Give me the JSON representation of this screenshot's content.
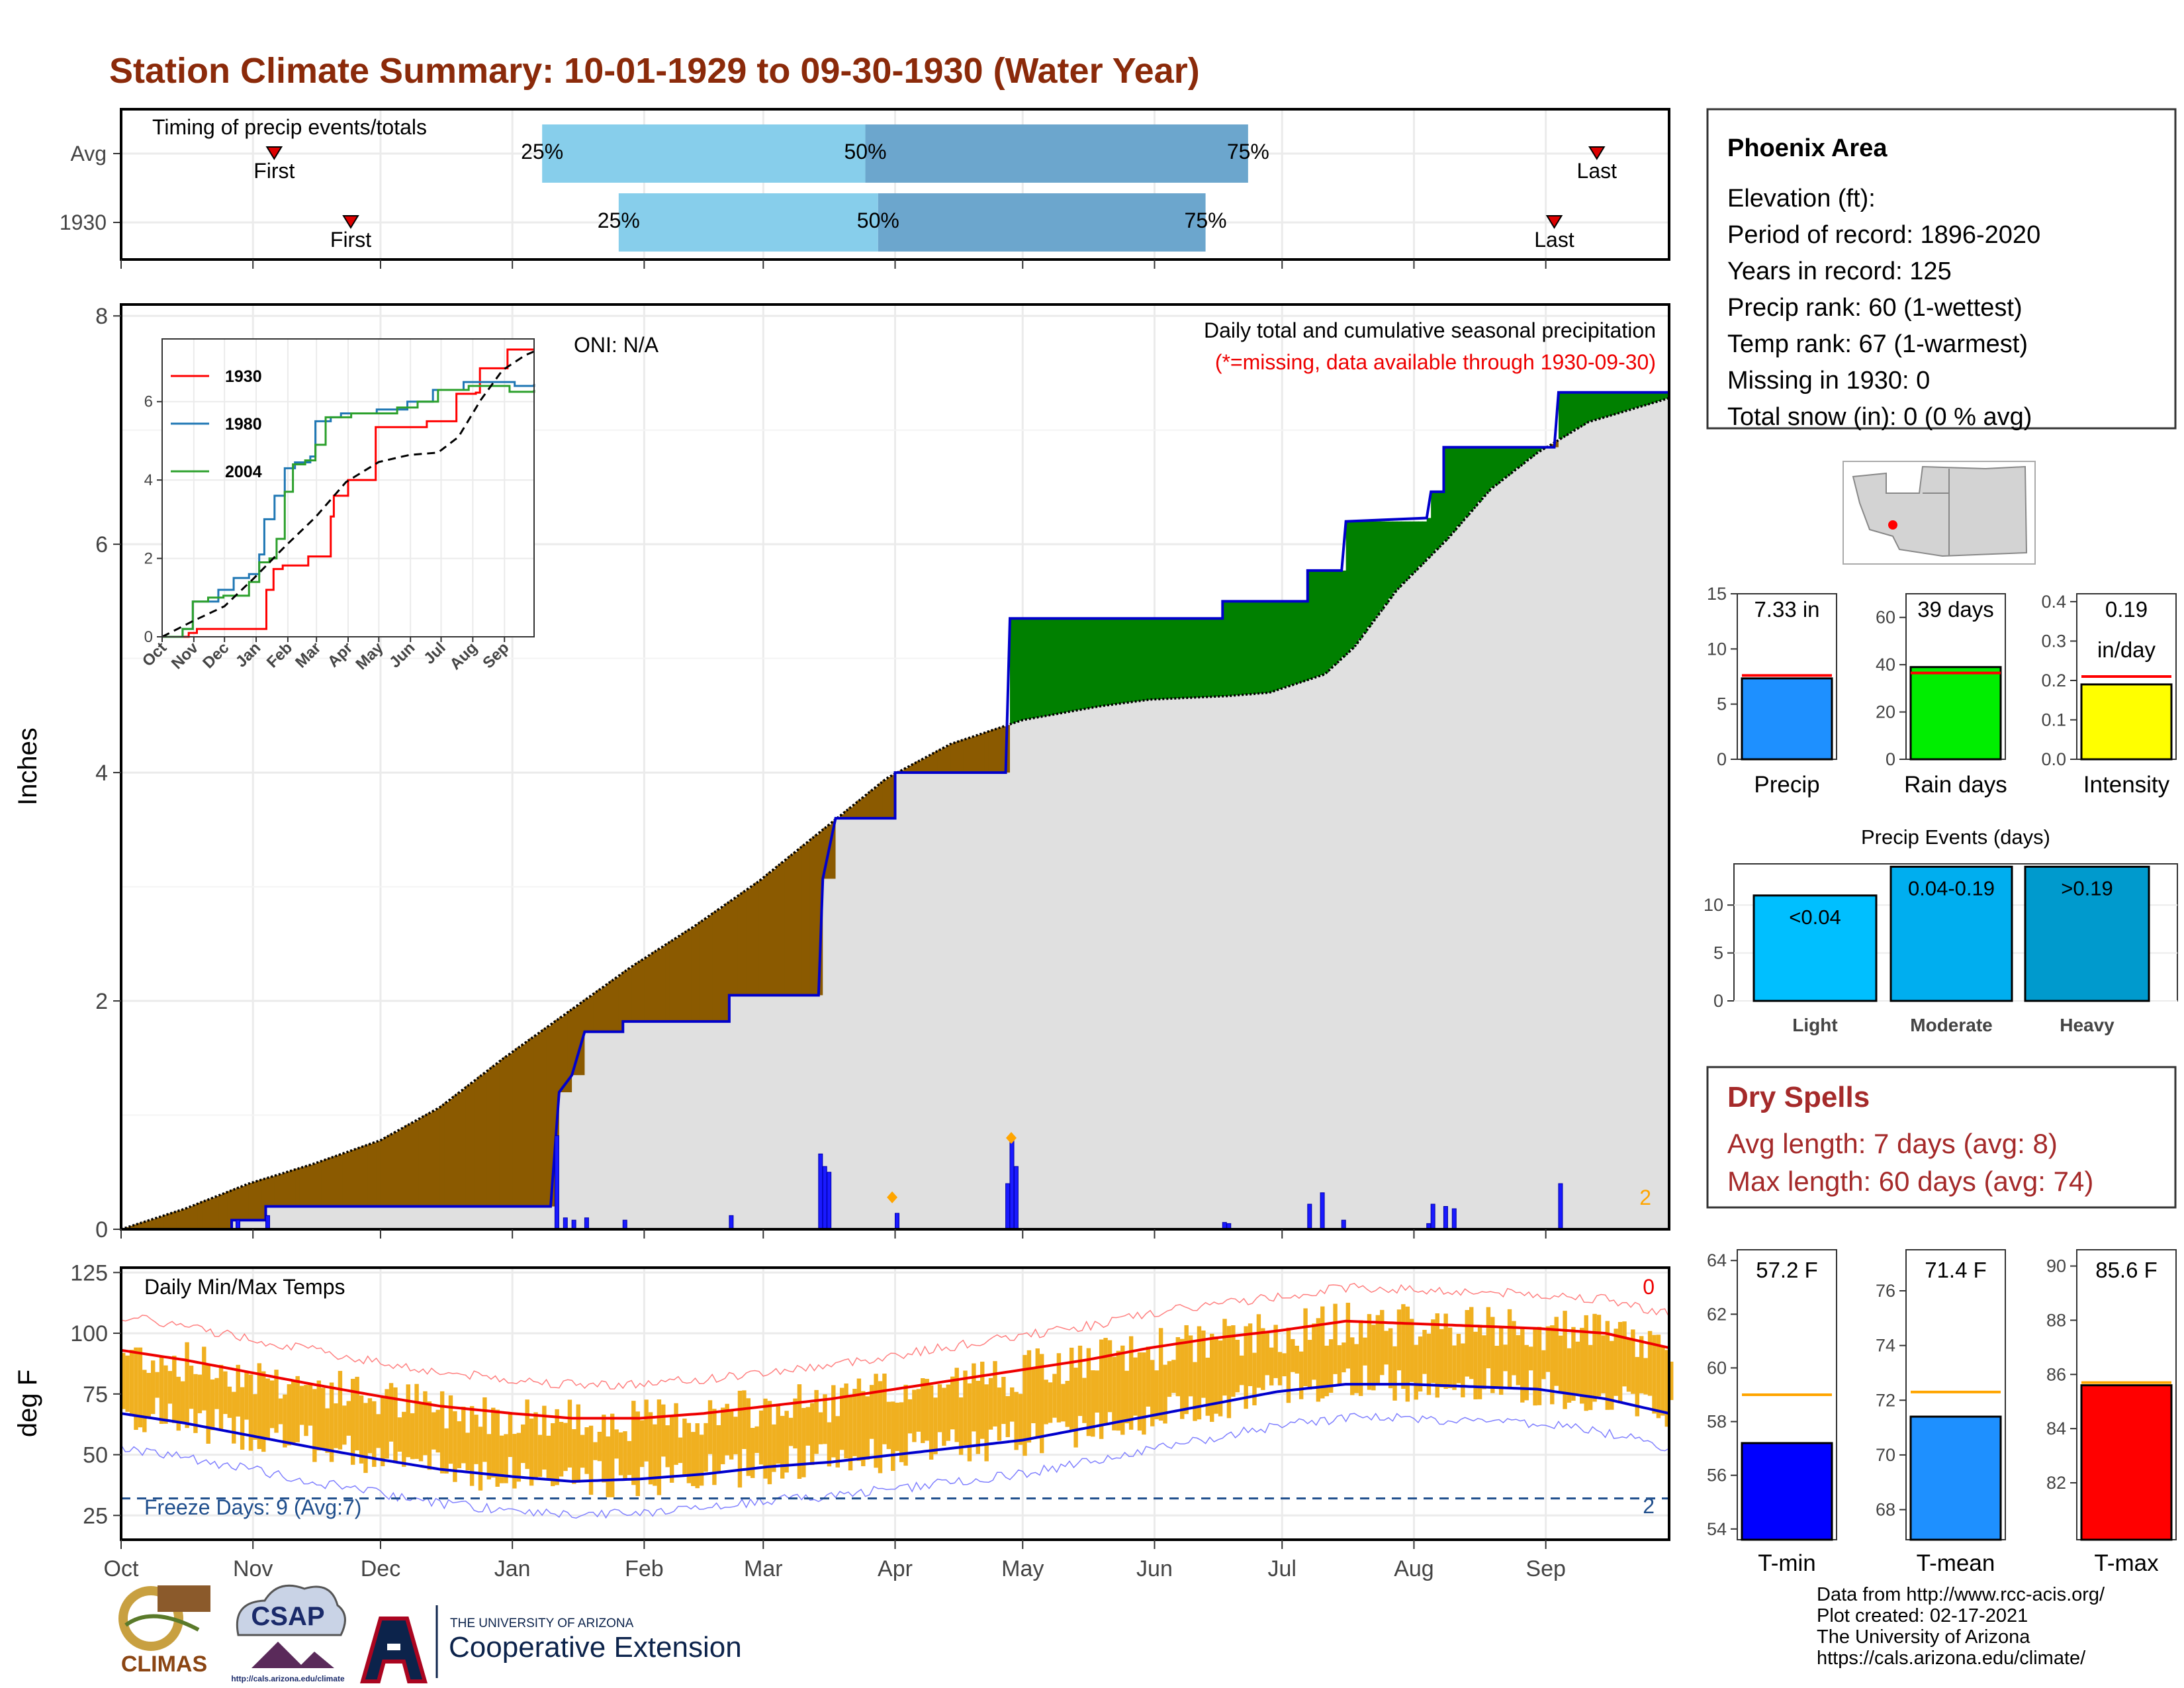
{
  "title": "Station Climate Summary: 10-01-1929 to 09-30-1930 (Water Year)",
  "colors": {
    "title": "#8b2a0a",
    "deficit": "#8B5A00",
    "surplus": "#008000",
    "cum_fill": "#E0E0E0",
    "obs_line": "#0000CC",
    "q1": "#87CEEB",
    "q2": "#6CA6CD",
    "temp_bar": "#F0B020",
    "avg_max": "#EE0000",
    "avg_min": "#0000CC",
    "precip_bar": "#1E90FF",
    "raindays_bar": "#00EE00",
    "intensity_bar": "#FFFF00",
    "light": "#00BFFF",
    "moderate": "#00AEEF",
    "heavy": "#009ACD",
    "tmin": "#0000FF",
    "tmean": "#1E90FF",
    "tmax": "#FF0000",
    "dry": "#A52A2A"
  },
  "timing": {
    "title": "Timing of precip events/totals",
    "rows": [
      {
        "label": "Avg",
        "first_day": 36,
        "q25": 99,
        "q50": 175,
        "q75": 265,
        "last_day": 347,
        "first_label": "First",
        "last_label": "Last",
        "q25_label": "25%",
        "q50_label": "50%",
        "q75_label": "75%"
      },
      {
        "label": "1930",
        "first_day": 54,
        "q25": 117,
        "q50": 178,
        "q75": 255,
        "last_day": 337,
        "first_label": "First",
        "last_label": "Last",
        "q25_label": "25%",
        "q50_label": "50%",
        "q75_label": "75%"
      }
    ]
  },
  "precip_panel": {
    "ylabel": "Inches",
    "yticks": [
      "0",
      "2",
      "4",
      "6",
      "8"
    ],
    "oni": "ONI: N/A",
    "note1": "Daily total and cumulative seasonal precipitation",
    "note2": "(*=missing, data available through 1930-09-30)",
    "corner_value": "2"
  },
  "months": [
    "Oct",
    "Nov",
    "Dec",
    "Jan",
    "Feb",
    "Mar",
    "Apr",
    "May",
    "Jun",
    "Jul",
    "Aug",
    "Sep"
  ],
  "chart_data": [
    {
      "type": "area",
      "name": "cumulative_precip",
      "x_unit": "day of water year",
      "ylim": [
        0,
        8.1
      ],
      "average_cumulative": [
        [
          0,
          0
        ],
        [
          15,
          0.18
        ],
        [
          30,
          0.4
        ],
        [
          45,
          0.57
        ],
        [
          61,
          0.78
        ],
        [
          75,
          1.07
        ],
        [
          90,
          1.5
        ],
        [
          105,
          1.9
        ],
        [
          120,
          2.3
        ],
        [
          135,
          2.66
        ],
        [
          150,
          3.05
        ],
        [
          165,
          3.5
        ],
        [
          180,
          3.95
        ],
        [
          195,
          4.25
        ],
        [
          212,
          4.46
        ],
        [
          230,
          4.58
        ],
        [
          242,
          4.64
        ],
        [
          260,
          4.67
        ],
        [
          270,
          4.7
        ],
        [
          283,
          4.86
        ],
        [
          290,
          5.1
        ],
        [
          300,
          5.6
        ],
        [
          312,
          6.05
        ],
        [
          322,
          6.48
        ],
        [
          333,
          6.8
        ],
        [
          345,
          7.07
        ],
        [
          355,
          7.18
        ],
        [
          364,
          7.28
        ]
      ],
      "observed_cumulative": [
        [
          0,
          0
        ],
        [
          26,
          0
        ],
        [
          26,
          0.08
        ],
        [
          34,
          0.08
        ],
        [
          34,
          0.2
        ],
        [
          101,
          0.2
        ],
        [
          102,
          0.7
        ],
        [
          103,
          1.2
        ],
        [
          106,
          1.35
        ],
        [
          109,
          1.73
        ],
        [
          118,
          1.73
        ],
        [
          118,
          1.82
        ],
        [
          143,
          1.82
        ],
        [
          143,
          2.05
        ],
        [
          164,
          2.05
        ],
        [
          165,
          3.07
        ],
        [
          168,
          3.6
        ],
        [
          182,
          3.6
        ],
        [
          182,
          4.0
        ],
        [
          208,
          4.0
        ],
        [
          209,
          5.35
        ],
        [
          259,
          5.35
        ],
        [
          259,
          5.5
        ],
        [
          279,
          5.5
        ],
        [
          279,
          5.77
        ],
        [
          287,
          5.77
        ],
        [
          288,
          6.2
        ],
        [
          307,
          6.23
        ],
        [
          308,
          6.46
        ],
        [
          311,
          6.46
        ],
        [
          311,
          6.85
        ],
        [
          337,
          6.85
        ],
        [
          338,
          7.33
        ],
        [
          364,
          7.33
        ]
      ],
      "daily_precip": [
        [
          27,
          0.08
        ],
        [
          34,
          0.12
        ],
        [
          102,
          0.82
        ],
        [
          104,
          0.1
        ],
        [
          106,
          0.08
        ],
        [
          109,
          0.1
        ],
        [
          118,
          0.08
        ],
        [
          143,
          0.12
        ],
        [
          164,
          0.66
        ],
        [
          165,
          0.55
        ],
        [
          166,
          0.5
        ],
        [
          182,
          0.14
        ],
        [
          208,
          0.4
        ],
        [
          209,
          0.82
        ],
        [
          210,
          0.55
        ],
        [
          259,
          0.06
        ],
        [
          260,
          0.05
        ],
        [
          279,
          0.22
        ],
        [
          282,
          0.32
        ],
        [
          287,
          0.08
        ],
        [
          307,
          0.05
        ],
        [
          308,
          0.22
        ],
        [
          311,
          0.2
        ],
        [
          313,
          0.18
        ],
        [
          338,
          0.4
        ]
      ],
      "missing_markers": [
        [
          181,
          0.28
        ],
        [
          209,
          0.8
        ]
      ],
      "oni": "ONI: N/A"
    },
    {
      "type": "line",
      "name": "inset_cumulative",
      "categories": [
        "Oct",
        "Nov",
        "Dec",
        "Jan",
        "Feb",
        "Mar",
        "Apr",
        "May",
        "Jun",
        "Jul",
        "Aug",
        "Sep"
      ],
      "ylim": [
        0,
        7.6
      ],
      "yticks": [
        "0",
        "2",
        "4",
        "6"
      ],
      "series": [
        {
          "name": "1930",
          "color": "#FF0000",
          "points": [
            [
              0,
              0
            ],
            [
              26,
              0.1
            ],
            [
              34,
              0.2
            ],
            [
              101,
              0.2
            ],
            [
              102,
              1.2
            ],
            [
              109,
              1.73
            ],
            [
              118,
              1.82
            ],
            [
              143,
              2.05
            ],
            [
              164,
              2.05
            ],
            [
              165,
              3.07
            ],
            [
              168,
              3.6
            ],
            [
              182,
              3.6
            ],
            [
              182,
              4.0
            ],
            [
              208,
              4.0
            ],
            [
              209,
              5.35
            ],
            [
              259,
              5.35
            ],
            [
              259,
              5.5
            ],
            [
              279,
              5.5
            ],
            [
              288,
              6.2
            ],
            [
              307,
              6.23
            ],
            [
              311,
              6.85
            ],
            [
              337,
              6.85
            ],
            [
              338,
              7.33
            ],
            [
              364,
              7.33
            ]
          ]
        },
        {
          "name": "1980",
          "color": "#1F77B4",
          "points": [
            [
              0,
              0
            ],
            [
              20,
              0.2
            ],
            [
              30,
              0.9
            ],
            [
              55,
              1.2
            ],
            [
              70,
              1.5
            ],
            [
              85,
              1.6
            ],
            [
              95,
              2.1
            ],
            [
              100,
              3.0
            ],
            [
              110,
              3.6
            ],
            [
              120,
              4.3
            ],
            [
              130,
              4.45
            ],
            [
              145,
              4.6
            ],
            [
              150,
              5.5
            ],
            [
              165,
              5.6
            ],
            [
              175,
              5.7
            ],
            [
              210,
              5.8
            ],
            [
              225,
              5.8
            ],
            [
              240,
              6.0
            ],
            [
              265,
              6.3
            ],
            [
              295,
              6.5
            ],
            [
              330,
              6.5
            ],
            [
              345,
              6.4
            ],
            [
              364,
              6.45
            ]
          ]
        },
        {
          "name": "2004",
          "color": "#2CA02C",
          "points": [
            [
              0,
              0
            ],
            [
              20,
              0.2
            ],
            [
              30,
              0.9
            ],
            [
              45,
              1.0
            ],
            [
              60,
              1.05
            ],
            [
              75,
              1.05
            ],
            [
              85,
              1.4
            ],
            [
              95,
              1.9
            ],
            [
              105,
              2.0
            ],
            [
              112,
              2.5
            ],
            [
              120,
              3.7
            ],
            [
              128,
              4.4
            ],
            [
              140,
              4.5
            ],
            [
              150,
              4.9
            ],
            [
              160,
              5.6
            ],
            [
              185,
              5.7
            ],
            [
              210,
              5.7
            ],
            [
              230,
              5.85
            ],
            [
              250,
              6.0
            ],
            [
              270,
              6.3
            ],
            [
              300,
              6.4
            ],
            [
              340,
              6.25
            ],
            [
              364,
              6.3
            ]
          ]
        }
      ],
      "average": [
        [
          0,
          0
        ],
        [
          30,
          0.4
        ],
        [
          61,
          0.78
        ],
        [
          90,
          1.5
        ],
        [
          120,
          2.3
        ],
        [
          150,
          3.05
        ],
        [
          180,
          3.95
        ],
        [
          212,
          4.46
        ],
        [
          242,
          4.64
        ],
        [
          270,
          4.7
        ],
        [
          290,
          5.1
        ],
        [
          312,
          6.05
        ],
        [
          333,
          6.8
        ],
        [
          355,
          7.18
        ],
        [
          364,
          7.28
        ]
      ]
    },
    {
      "type": "bar",
      "name": "daily_temps",
      "ylabel": "deg F",
      "title": "Daily Min/Max Temps",
      "ylim": [
        15,
        127
      ],
      "yticks": [
        "25",
        "50",
        "75",
        "100",
        "125"
      ],
      "avg_max_curve": [
        [
          0,
          93
        ],
        [
          15,
          89
        ],
        [
          30,
          84
        ],
        [
          45,
          79
        ],
        [
          61,
          74
        ],
        [
          75,
          70
        ],
        [
          92,
          67
        ],
        [
          106,
          65
        ],
        [
          122,
          65
        ],
        [
          137,
          67
        ],
        [
          152,
          70
        ],
        [
          167,
          73
        ],
        [
          182,
          77
        ],
        [
          197,
          81
        ],
        [
          212,
          85
        ],
        [
          227,
          89
        ],
        [
          242,
          94
        ],
        [
          257,
          98
        ],
        [
          272,
          101
        ],
        [
          288,
          105
        ],
        [
          303,
          104
        ],
        [
          318,
          103
        ],
        [
          333,
          102
        ],
        [
          349,
          100
        ],
        [
          364,
          94
        ]
      ],
      "avg_min_curve": [
        [
          0,
          67
        ],
        [
          15,
          63
        ],
        [
          30,
          58
        ],
        [
          45,
          53
        ],
        [
          61,
          48
        ],
        [
          75,
          44
        ],
        [
          92,
          41
        ],
        [
          106,
          39
        ],
        [
          122,
          40
        ],
        [
          137,
          42
        ],
        [
          152,
          45
        ],
        [
          167,
          47
        ],
        [
          182,
          50
        ],
        [
          197,
          53
        ],
        [
          212,
          56
        ],
        [
          227,
          61
        ],
        [
          242,
          66
        ],
        [
          257,
          71
        ],
        [
          272,
          76
        ],
        [
          288,
          79
        ],
        [
          303,
          79
        ],
        [
          318,
          78
        ],
        [
          333,
          77
        ],
        [
          349,
          73
        ],
        [
          364,
          67
        ]
      ],
      "freeze_line": 32,
      "freeze_days": "Freeze Days: 9 (Avg:7)",
      "corner_top": "0",
      "corner_bottom": "2"
    }
  ],
  "info": {
    "station": "Phoenix Area",
    "lines": [
      "Elevation (ft):",
      "Period of record: 1896-2020",
      "Years in record: 125",
      "Precip rank: 60 (1-wettest)",
      "Temp rank: 67 (1-warmest)",
      "Missing in 1930: 0",
      "Total snow (in): 0 (0 % avg)"
    ]
  },
  "summary_bars": [
    {
      "name": "Precip",
      "label": "7.33 in",
      "value": 7.33,
      "avg": 7.6,
      "ylim": [
        0,
        15
      ],
      "yticks": [
        "0",
        "5",
        "10",
        "15"
      ],
      "tick_values": [
        0,
        5,
        10,
        15
      ],
      "color": "#1E90FF"
    },
    {
      "name": "Rain days",
      "label": "39 days",
      "value": 39,
      "avg": 36.5,
      "ylim": [
        0,
        70
      ],
      "yticks": [
        "0",
        "20",
        "40",
        "60"
      ],
      "tick_values": [
        0,
        20,
        40,
        60
      ],
      "color": "#00EE00"
    },
    {
      "name": "Intensity",
      "label": "0.19",
      "label2": "in/day",
      "value": 0.19,
      "avg": 0.21,
      "ylim": [
        0,
        0.42
      ],
      "yticks": [
        "0.0",
        "0.1",
        "0.2",
        "0.3",
        "0.4"
      ],
      "tick_values": [
        0,
        0.1,
        0.2,
        0.3,
        0.4
      ],
      "color": "#FFFF00"
    }
  ],
  "events": {
    "title": "Precip Events (days)",
    "ylim": [
      0,
      14.3
    ],
    "yticks": [
      "0",
      "5",
      "10"
    ],
    "bars": [
      {
        "name": "Light",
        "label": "<0.04",
        "value": 11,
        "color": "#00BFFF"
      },
      {
        "name": "Moderate",
        "label": "0.04-0.19",
        "value": 14,
        "color": "#00AEEF"
      },
      {
        "name": "Heavy",
        "label": ">0.19",
        "value": 14,
        "color": "#009ACD"
      }
    ]
  },
  "dry_spells": {
    "title": "Dry Spells",
    "avg_length": "Avg length: 7 days (avg: 8)",
    "max_length": "Max length: 60 days (avg: 74)"
  },
  "temp_bars": [
    {
      "name": "T-min",
      "label": "57.2 F",
      "value": 57.2,
      "avg": 59.0,
      "ylim": [
        53.6,
        64.4
      ],
      "yticks": [
        "54",
        "56",
        "58",
        "60",
        "62",
        "64"
      ],
      "tick_values": [
        54,
        56,
        58,
        60,
        62,
        64
      ],
      "color": "#0000FF"
    },
    {
      "name": "T-mean",
      "label": "71.4 F",
      "value": 71.4,
      "avg": 72.3,
      "ylim": [
        66.9,
        77.5
      ],
      "yticks": [
        "68",
        "70",
        "72",
        "74",
        "76"
      ],
      "tick_values": [
        68,
        70,
        72,
        74,
        76
      ],
      "color": "#1E90FF"
    },
    {
      "name": "T-max",
      "label": "85.6 F",
      "value": 85.6,
      "avg": 85.7,
      "ylim": [
        79.9,
        90.6
      ],
      "yticks": [
        "82",
        "84",
        "86",
        "88",
        "90"
      ],
      "tick_values": [
        82,
        84,
        86,
        88,
        90
      ],
      "color": "#FF0000"
    }
  ],
  "footer": {
    "lines": [
      "Data from http://www.rcc-acis.org/",
      "Plot created: 02-17-2021",
      "The University of Arizona",
      "https://cals.arizona.edu/climate/"
    ]
  },
  "logos": {
    "climas": "CLIMAS",
    "csap": "CSAP",
    "csap_url": "http://cals.arizona.edu/climate",
    "ua_small": "THE UNIVERSITY OF ARIZONA",
    "ua_big": "Cooperative Extension"
  }
}
